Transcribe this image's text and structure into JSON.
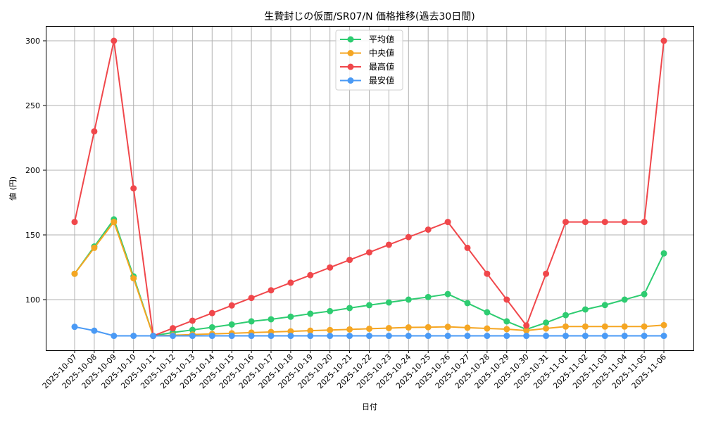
{
  "chart_data": {
    "type": "line",
    "title": "生贄封じの仮面/SR07/N 価格推移(過去30日間)",
    "xlabel": "日付",
    "ylabel": "値 (円)",
    "ylim": [
      62,
      313
    ],
    "yticks": [
      100,
      150,
      200,
      250,
      300
    ],
    "grid": true,
    "legend_position": "upper center",
    "x": [
      "2025-10-07",
      "2025-10-08",
      "2025-10-09",
      "2025-10-10",
      "2025-10-11",
      "2025-10-12",
      "2025-10-13",
      "2025-10-14",
      "2025-10-15",
      "2025-10-16",
      "2025-10-17",
      "2025-10-18",
      "2025-10-19",
      "2025-10-20",
      "2025-10-21",
      "2025-10-22",
      "2025-10-23",
      "2025-10-24",
      "2025-10-25",
      "2025-10-26",
      "2025-10-27",
      "2025-10-28",
      "2025-10-29",
      "2025-10-30",
      "2025-10-31",
      "2025-11-01",
      "2025-11-02",
      "2025-11-03",
      "2025-11-04",
      "2025-11-05",
      "2025-11-06"
    ],
    "series": [
      {
        "name": "平均値",
        "color": "#2ecc71",
        "values": [
          120,
          141,
          162,
          118,
          72,
          74.6,
          76.6,
          78.6,
          80.8,
          83.2,
          84.8,
          86.8,
          89.1,
          91.1,
          93.5,
          95.7,
          97.8,
          100,
          102,
          104.3,
          97.3,
          90.2,
          83.2,
          77,
          82.2,
          88,
          92.4,
          95.8,
          100,
          104.2,
          135.7
        ]
      },
      {
        "name": "中央値",
        "color": "#f5a623",
        "values": [
          120,
          140,
          160,
          116.5,
          72,
          72.5,
          73,
          73.5,
          74,
          74.5,
          75,
          75.5,
          76,
          76.5,
          77,
          77.5,
          78,
          78.5,
          78.7,
          79,
          78.3,
          77.7,
          77.2,
          76.1,
          77.7,
          79.2,
          79.2,
          79.2,
          79.2,
          79.2,
          80.3
        ]
      },
      {
        "name": "最高値",
        "color": "#f0474b",
        "values": [
          160,
          230,
          300,
          186,
          72,
          77.9,
          83.7,
          89.6,
          95.5,
          101.3,
          107.2,
          113.1,
          118.9,
          124.8,
          130.7,
          136.5,
          142.4,
          148.3,
          154.1,
          160,
          140,
          120,
          100,
          80,
          120,
          160,
          160,
          160,
          160,
          160,
          300
        ]
      },
      {
        "name": "最安値",
        "color": "#4a9af5",
        "values": [
          79,
          76,
          72,
          72,
          72,
          72,
          72,
          72,
          72,
          72,
          72,
          72,
          72,
          72,
          72,
          72,
          72,
          72,
          72,
          72,
          72,
          72,
          72,
          72,
          72,
          72,
          72,
          72,
          72,
          72,
          72
        ]
      }
    ]
  }
}
